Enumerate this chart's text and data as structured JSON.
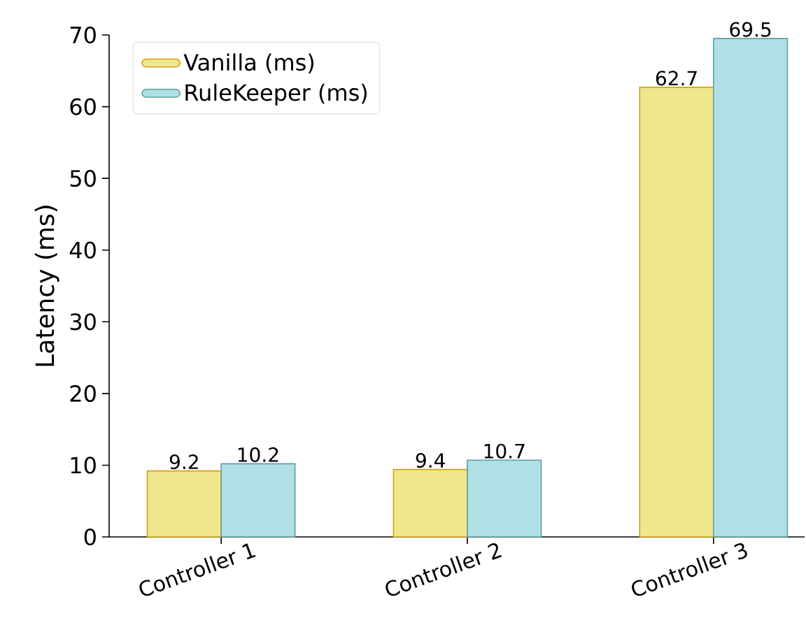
{
  "chart_data": {
    "type": "bar",
    "ylabel": "Latency (ms)",
    "categories": [
      "Controller 1",
      "Controller 2",
      "Controller 3"
    ],
    "series": [
      {
        "name": "Vanilla (ms)",
        "color": "#f0e68c",
        "values": [
          9.2,
          9.4,
          62.7
        ]
      },
      {
        "name": "RuleKeeper (ms)",
        "color": "#b0e0e6",
        "values": [
          10.2,
          10.7,
          69.5
        ]
      }
    ],
    "ylim": [
      0,
      70
    ],
    "yticks": [
      0,
      10,
      20,
      30,
      40,
      50,
      60,
      70
    ],
    "data_labels": true,
    "legend": "top left",
    "grid": false
  }
}
